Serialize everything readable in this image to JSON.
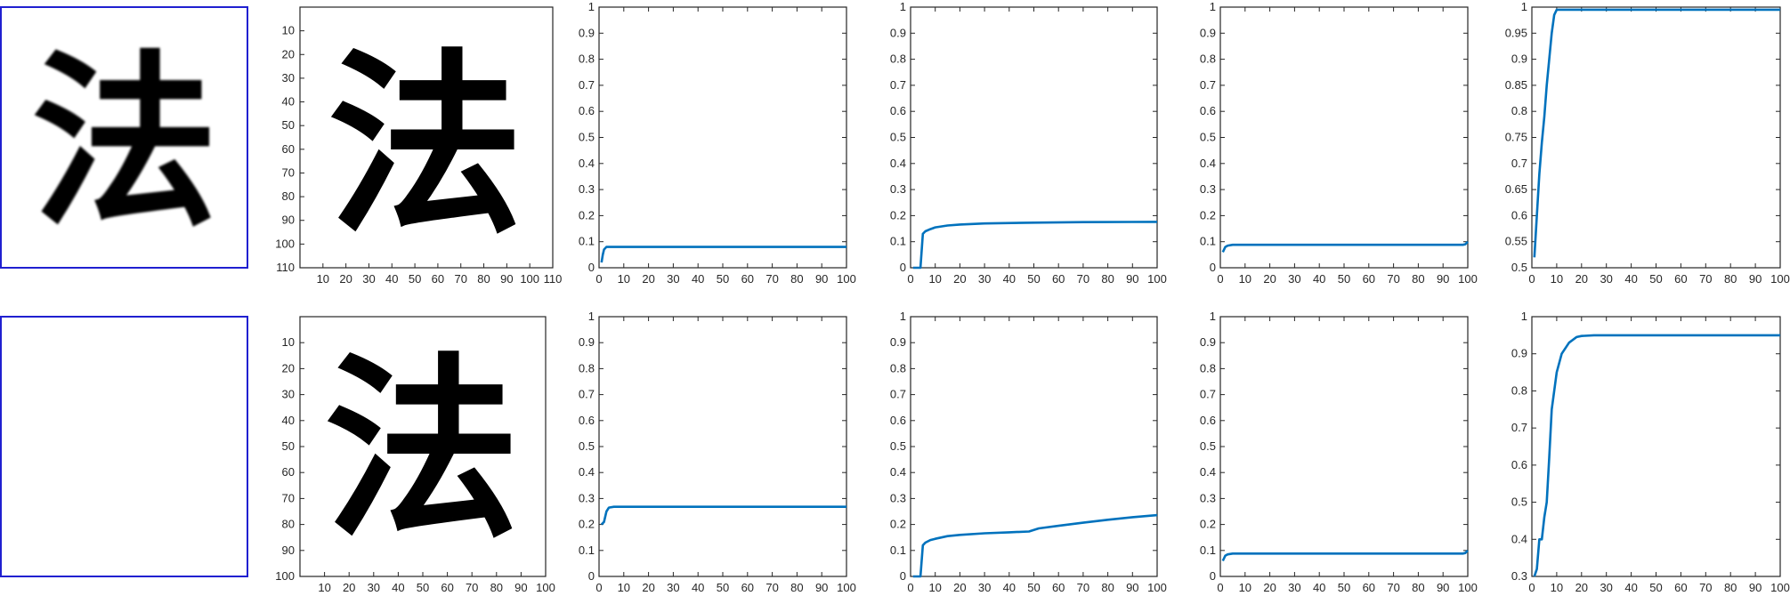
{
  "colors": {
    "series": "#0072BD",
    "thumb_border": "#2020d0",
    "axis": "#262626"
  },
  "rows": [
    {
      "noise": false,
      "char": "法",
      "char_img_size": 110
    },
    {
      "noise": true,
      "char": "法",
      "char_img_size": 100
    }
  ],
  "chart_data": [
    {
      "type": "line",
      "row": 0,
      "xlim": [
        0,
        100
      ],
      "ylim": [
        0,
        1
      ],
      "xticks": [
        0,
        10,
        20,
        30,
        40,
        50,
        60,
        70,
        80,
        90,
        100
      ],
      "yticks": [
        0,
        0.1,
        0.2,
        0.3,
        0.4,
        0.5,
        0.6,
        0.7,
        0.8,
        0.9,
        1
      ],
      "x": [
        1,
        1.5,
        2,
        3,
        5,
        10,
        30,
        60,
        100
      ],
      "y": [
        0.02,
        0.05,
        0.07,
        0.08,
        0.08,
        0.08,
        0.08,
        0.08,
        0.08
      ]
    },
    {
      "type": "line",
      "row": 0,
      "xlim": [
        0,
        100
      ],
      "ylim": [
        0,
        1
      ],
      "xticks": [
        0,
        10,
        20,
        30,
        40,
        50,
        60,
        70,
        80,
        90,
        100
      ],
      "yticks": [
        0,
        0.1,
        0.2,
        0.3,
        0.4,
        0.5,
        0.6,
        0.7,
        0.8,
        0.9,
        1
      ],
      "x": [
        1,
        4,
        5,
        6,
        8,
        10,
        15,
        20,
        30,
        50,
        70,
        100
      ],
      "y": [
        0,
        0,
        0.13,
        0.14,
        0.148,
        0.155,
        0.162,
        0.166,
        0.17,
        0.173,
        0.175,
        0.176
      ]
    },
    {
      "type": "line",
      "row": 0,
      "xlim": [
        0,
        100
      ],
      "ylim": [
        0,
        1
      ],
      "xticks": [
        0,
        10,
        20,
        30,
        40,
        50,
        60,
        70,
        80,
        90,
        100
      ],
      "yticks": [
        0,
        0.1,
        0.2,
        0.3,
        0.4,
        0.5,
        0.6,
        0.7,
        0.8,
        0.9,
        1
      ],
      "x": [
        1,
        2,
        3,
        5,
        10,
        50,
        98,
        99,
        100
      ],
      "y": [
        0.06,
        0.08,
        0.085,
        0.088,
        0.088,
        0.088,
        0.088,
        0.09,
        0.1
      ]
    },
    {
      "type": "line",
      "row": 0,
      "xlim": [
        0,
        100
      ],
      "ylim": [
        0.5,
        1
      ],
      "xticks": [
        0,
        10,
        20,
        30,
        40,
        50,
        60,
        70,
        80,
        90,
        100
      ],
      "yticks": [
        0.5,
        0.55,
        0.6,
        0.65,
        0.7,
        0.75,
        0.8,
        0.85,
        0.9,
        0.95,
        1
      ],
      "x": [
        1,
        2,
        3,
        4,
        5,
        6,
        7,
        8,
        9,
        10,
        12,
        15,
        20,
        50,
        100
      ],
      "y": [
        0.52,
        0.6,
        0.68,
        0.74,
        0.79,
        0.85,
        0.9,
        0.95,
        0.985,
        0.995,
        0.995,
        0.995,
        0.995,
        0.995,
        0.995
      ]
    },
    {
      "type": "line",
      "row": 1,
      "xlim": [
        0,
        100
      ],
      "ylim": [
        0,
        1
      ],
      "xticks": [
        0,
        10,
        20,
        30,
        40,
        50,
        60,
        70,
        80,
        90,
        100
      ],
      "yticks": [
        0,
        0.1,
        0.2,
        0.3,
        0.4,
        0.5,
        0.6,
        0.7,
        0.8,
        0.9,
        1
      ],
      "x": [
        1,
        2,
        3,
        4,
        6,
        10,
        50,
        100
      ],
      "y": [
        0.2,
        0.21,
        0.25,
        0.265,
        0.268,
        0.268,
        0.268,
        0.268
      ]
    },
    {
      "type": "line",
      "row": 1,
      "xlim": [
        0,
        100
      ],
      "ylim": [
        0,
        1
      ],
      "xticks": [
        0,
        10,
        20,
        30,
        40,
        50,
        60,
        70,
        80,
        90,
        100
      ],
      "yticks": [
        0,
        0.1,
        0.2,
        0.3,
        0.4,
        0.5,
        0.6,
        0.7,
        0.8,
        0.9,
        1
      ],
      "x": [
        1,
        4,
        5,
        6,
        8,
        10,
        15,
        20,
        30,
        40,
        48,
        52,
        60,
        70,
        80,
        90,
        100
      ],
      "y": [
        0,
        0,
        0.12,
        0.13,
        0.14,
        0.145,
        0.155,
        0.16,
        0.166,
        0.17,
        0.173,
        0.185,
        0.195,
        0.207,
        0.218,
        0.228,
        0.236
      ]
    },
    {
      "type": "line",
      "row": 1,
      "xlim": [
        0,
        100
      ],
      "ylim": [
        0,
        1
      ],
      "xticks": [
        0,
        10,
        20,
        30,
        40,
        50,
        60,
        70,
        80,
        90,
        100
      ],
      "yticks": [
        0,
        0.1,
        0.2,
        0.3,
        0.4,
        0.5,
        0.6,
        0.7,
        0.8,
        0.9,
        1
      ],
      "x": [
        1,
        2,
        3,
        5,
        10,
        50,
        98,
        99,
        100
      ],
      "y": [
        0.06,
        0.08,
        0.085,
        0.088,
        0.088,
        0.088,
        0.088,
        0.09,
        0.1
      ]
    },
    {
      "type": "line",
      "row": 1,
      "xlim": [
        0,
        100
      ],
      "ylim": [
        0.3,
        1
      ],
      "xticks": [
        0,
        10,
        20,
        30,
        40,
        50,
        60,
        70,
        80,
        90,
        100
      ],
      "yticks": [
        0.3,
        0.4,
        0.5,
        0.6,
        0.7,
        0.8,
        0.9,
        1
      ],
      "x": [
        1,
        2,
        3,
        4,
        5,
        6,
        7,
        8,
        10,
        12,
        15,
        18,
        20,
        25,
        30,
        50,
        100
      ],
      "y": [
        0.3,
        0.32,
        0.4,
        0.4,
        0.46,
        0.5,
        0.62,
        0.75,
        0.85,
        0.9,
        0.93,
        0.945,
        0.948,
        0.95,
        0.95,
        0.95,
        0.95
      ]
    }
  ]
}
